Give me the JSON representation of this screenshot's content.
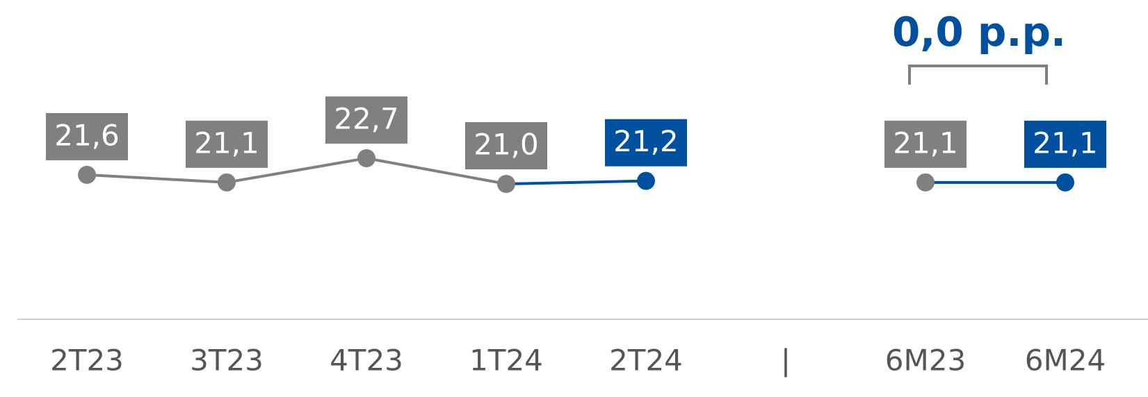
{
  "chart_data": {
    "type": "line",
    "categories": [
      "2T23",
      "3T23",
      "4T23",
      "1T24",
      "2T24",
      "|",
      "6M23",
      "6M24"
    ],
    "values": [
      21.6,
      21.1,
      22.7,
      21.0,
      21.2,
      null,
      21.1,
      21.1
    ],
    "value_labels": [
      "21,6",
      "21,1",
      "22,7",
      "21,0",
      "21,2",
      null,
      "21,1",
      "21,1"
    ],
    "point_colors": [
      "#808080",
      "#808080",
      "#808080",
      "#808080",
      "#0050a0",
      null,
      "#808080",
      "#0050a0"
    ],
    "annotation": "0,0 p.p."
  }
}
